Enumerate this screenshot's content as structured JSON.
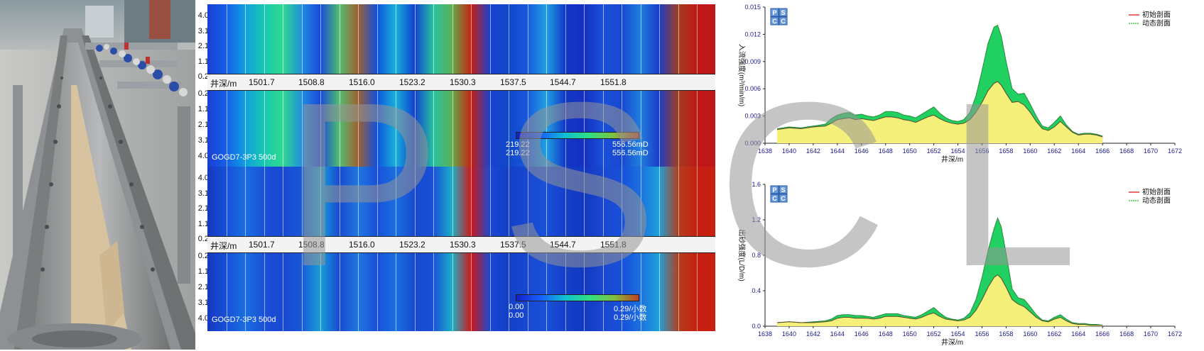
{
  "heatmap_top": {
    "y_ticks": [
      "4.0",
      "3.1",
      "2.1",
      "1.1",
      "0.2"
    ],
    "y_ticks_lower": [
      "0.2",
      "1.1",
      "2.1",
      "3.1",
      "4.0"
    ],
    "depth_label": "井深/m",
    "depth_ticks": [
      "1501.7",
      "1508.8",
      "1516.0",
      "1523.2",
      "1530.3",
      "1537.5",
      "1544.7",
      "1551.8"
    ],
    "well_label": "GOGD7-3P3 500d",
    "legend_min": "219.22",
    "legend_max": "556.56mD",
    "legend_min2": "219.22",
    "legend_max2": "556.56mD"
  },
  "heatmap_bottom": {
    "y_ticks": [
      "4.0",
      "3.1",
      "2.1",
      "1.1",
      "0.2"
    ],
    "y_ticks_lower": [
      "0.2",
      "1.1",
      "2.1",
      "3.1",
      "4.0"
    ],
    "depth_label": "井深/m",
    "depth_ticks": [
      "1501.7",
      "1508.8",
      "1516.0",
      "1523.2",
      "1530.3",
      "1537.5",
      "1544.7",
      "1551.8"
    ],
    "well_label": "GOGD7-3P3 500d",
    "legend_min": "0.00",
    "legend_max": "0.29/小数",
    "legend_min2": "0.00",
    "legend_max2": "0.29/小数"
  },
  "watermark": "PSCL",
  "chart_data": [
    {
      "type": "area",
      "logo": [
        "P",
        "S",
        "C",
        "C"
      ],
      "ylabel": "入流强度(m³/min/m)",
      "xlabel": "井深/m",
      "xlim": [
        1638,
        1672
      ],
      "x_ticks": [
        "1638",
        "1640",
        "1642",
        "1644",
        "1646",
        "1648",
        "1650",
        "1652",
        "1654",
        "1656",
        "1658",
        "1660",
        "1662",
        "1664",
        "1666",
        "1668",
        "1670",
        "1672"
      ],
      "ylim": [
        0,
        0.015
      ],
      "y_ticks": [
        "0.000",
        "0.003",
        "0.006",
        "0.009",
        "0.012",
        "0.015"
      ],
      "legend": [
        "初始剖面",
        "动态剖面"
      ],
      "legend_colors": [
        "#e8383a",
        "#48c848"
      ],
      "x": [
        1639.0,
        1640.0,
        1641.0,
        1642.0,
        1643.0,
        1643.5,
        1644.0,
        1644.5,
        1645.0,
        1645.5,
        1646.0,
        1646.5,
        1647.0,
        1647.5,
        1648.0,
        1648.5,
        1649.0,
        1649.5,
        1650.0,
        1650.5,
        1651.0,
        1651.5,
        1652.0,
        1652.5,
        1653.0,
        1653.5,
        1654.0,
        1654.5,
        1655.0,
        1655.5,
        1656.0,
        1656.5,
        1657.0,
        1657.3,
        1657.6,
        1658.0,
        1658.5,
        1659.0,
        1659.5,
        1660.0,
        1660.5,
        1661.0,
        1661.5,
        1662.0,
        1662.5,
        1663.0,
        1663.5,
        1664.0,
        1664.5,
        1665.0,
        1665.5,
        1666.0
      ],
      "series": [
        {
          "name": "初始剖面",
          "values": [
            0.0015,
            0.0017,
            0.0016,
            0.0018,
            0.0019,
            0.0022,
            0.0026,
            0.0027,
            0.0028,
            0.0026,
            0.0027,
            0.0026,
            0.0025,
            0.0027,
            0.0029,
            0.0029,
            0.0028,
            0.0026,
            0.0025,
            0.0023,
            0.0026,
            0.0029,
            0.0031,
            0.0027,
            0.0024,
            0.0022,
            0.0021,
            0.0022,
            0.0026,
            0.0034,
            0.0045,
            0.0058,
            0.0066,
            0.0068,
            0.0064,
            0.0055,
            0.0045,
            0.0046,
            0.0042,
            0.0034,
            0.0024,
            0.0016,
            0.0014,
            0.0018,
            0.0024,
            0.0018,
            0.0012,
            0.0009,
            0.001,
            0.001,
            0.0009,
            0.0007
          ]
        },
        {
          "name": "动态剖面",
          "values": [
            0.0016,
            0.0018,
            0.0017,
            0.0019,
            0.0021,
            0.0027,
            0.0031,
            0.0033,
            0.0034,
            0.0031,
            0.0032,
            0.003,
            0.0029,
            0.0031,
            0.0035,
            0.0035,
            0.0034,
            0.0031,
            0.003,
            0.0028,
            0.0032,
            0.0036,
            0.004,
            0.0033,
            0.0028,
            0.0025,
            0.0024,
            0.0026,
            0.0034,
            0.0052,
            0.008,
            0.011,
            0.0128,
            0.013,
            0.0118,
            0.009,
            0.006,
            0.0054,
            0.0055,
            0.0043,
            0.003,
            0.0019,
            0.0017,
            0.0023,
            0.003,
            0.002,
            0.0013,
            0.001,
            0.0011,
            0.0011,
            0.001,
            0.0008
          ]
        }
      ]
    },
    {
      "type": "area",
      "logo": [
        "P",
        "S",
        "C",
        "C"
      ],
      "ylabel": "出砂强度(L/D/m)",
      "xlabel": "井深/m",
      "xlim": [
        1638,
        1672
      ],
      "x_ticks": [
        "1638",
        "1640",
        "1642",
        "1644",
        "1646",
        "1648",
        "1650",
        "1652",
        "1654",
        "1656",
        "1658",
        "1660",
        "1662",
        "1664",
        "1666",
        "1668",
        "1670",
        "1672"
      ],
      "ylim": [
        0,
        1.6
      ],
      "y_ticks": [
        "0.0",
        "0.4",
        "0.8",
        "1.2",
        "1.6"
      ],
      "legend": [
        "初始剖面",
        "动态剖面"
      ],
      "legend_colors": [
        "#e8383a",
        "#48c848"
      ],
      "x": [
        1639.0,
        1640.0,
        1641.0,
        1642.0,
        1643.0,
        1643.5,
        1644.0,
        1644.5,
        1645.0,
        1645.5,
        1646.0,
        1646.5,
        1647.0,
        1647.5,
        1648.0,
        1648.5,
        1649.0,
        1649.5,
        1650.0,
        1650.5,
        1651.0,
        1651.5,
        1652.0,
        1652.5,
        1653.0,
        1653.5,
        1654.0,
        1654.5,
        1655.0,
        1655.5,
        1656.0,
        1656.5,
        1657.0,
        1657.3,
        1657.6,
        1658.0,
        1658.5,
        1659.0,
        1659.5,
        1660.0,
        1660.5,
        1661.0,
        1661.5,
        1662.0,
        1662.5,
        1663.0,
        1663.5,
        1664.0,
        1664.5,
        1665.0,
        1665.5,
        1666.0
      ],
      "series": [
        {
          "name": "初始剖面",
          "values": [
            0.04,
            0.05,
            0.04,
            0.04,
            0.05,
            0.06,
            0.09,
            0.1,
            0.1,
            0.09,
            0.09,
            0.09,
            0.08,
            0.09,
            0.11,
            0.11,
            0.11,
            0.1,
            0.09,
            0.08,
            0.1,
            0.13,
            0.15,
            0.11,
            0.08,
            0.07,
            0.06,
            0.07,
            0.1,
            0.18,
            0.3,
            0.44,
            0.55,
            0.58,
            0.54,
            0.44,
            0.3,
            0.25,
            0.22,
            0.16,
            0.1,
            0.06,
            0.05,
            0.08,
            0.1,
            0.06,
            0.03,
            0.02,
            0.02,
            0.01,
            0.01,
            0.01
          ]
        },
        {
          "name": "动态剖面",
          "values": [
            0.04,
            0.05,
            0.04,
            0.05,
            0.06,
            0.08,
            0.12,
            0.13,
            0.13,
            0.12,
            0.12,
            0.11,
            0.1,
            0.12,
            0.14,
            0.14,
            0.14,
            0.12,
            0.11,
            0.1,
            0.13,
            0.17,
            0.21,
            0.15,
            0.1,
            0.08,
            0.07,
            0.09,
            0.15,
            0.3,
            0.55,
            0.85,
            1.1,
            1.22,
            1.12,
            0.82,
            0.42,
            0.32,
            0.3,
            0.22,
            0.13,
            0.07,
            0.06,
            0.1,
            0.13,
            0.08,
            0.04,
            0.03,
            0.03,
            0.02,
            0.02,
            0.01
          ]
        }
      ]
    }
  ]
}
